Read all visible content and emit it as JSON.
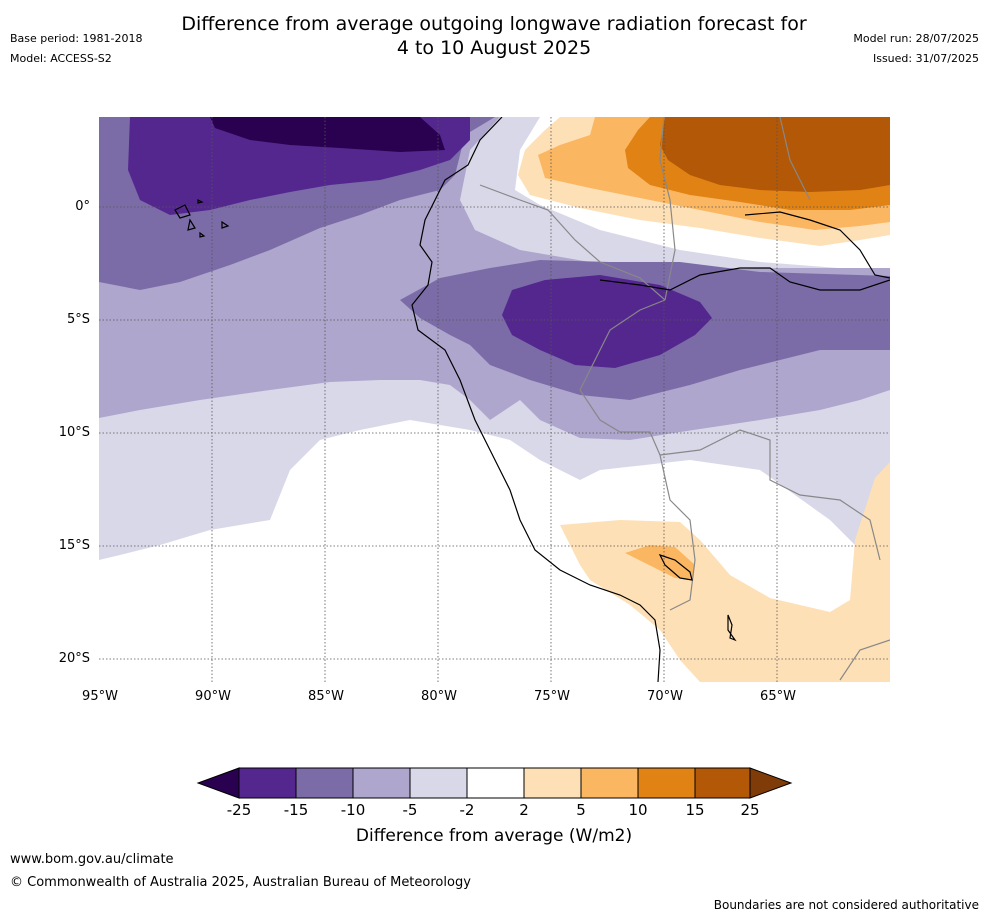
{
  "header": {
    "title_line1": "Difference from average outgoing longwave radiation forecast for",
    "title_line2": "4 to 10 August 2025",
    "base_period": "Base period: 1981-2018",
    "model": "Model: ACCESS-S2",
    "model_run": "Model run: 28/07/2025",
    "issued": "Issued: 31/07/2025"
  },
  "map": {
    "lat_labels": [
      "0°",
      "5°S",
      "10°S",
      "15°S",
      "20°S"
    ],
    "lon_labels": [
      "95°W",
      "90°W",
      "85°W",
      "80°W",
      "75°W",
      "70°W",
      "65°W"
    ]
  },
  "colorbar": {
    "title": "Difference from average (W/m2)",
    "ticks": [
      "-25",
      "-15",
      "-10",
      "-5",
      "-2",
      "2",
      "5",
      "10",
      "15",
      "25"
    ],
    "colors": {
      "below_-25": "#2a0050",
      "-25_-15": "#54278f",
      "-15_-10": "#7b6ca8",
      "-10_-5": "#aea6cd",
      "-5_-2": "#d9d8e9",
      "-2_2": "#ffffff",
      "2_5": "#fee0b6",
      "5_10": "#fbb662",
      "10_15": "#e08214",
      "15_25": "#b35806",
      "above_25": "#7f3b08"
    }
  },
  "footer": {
    "website": "www.bom.gov.au/climate",
    "copyright": "© Commonwealth of Australia 2025, Australian Bureau of Meteorology",
    "disclaimer": "Boundaries are not considered authoritative"
  }
}
